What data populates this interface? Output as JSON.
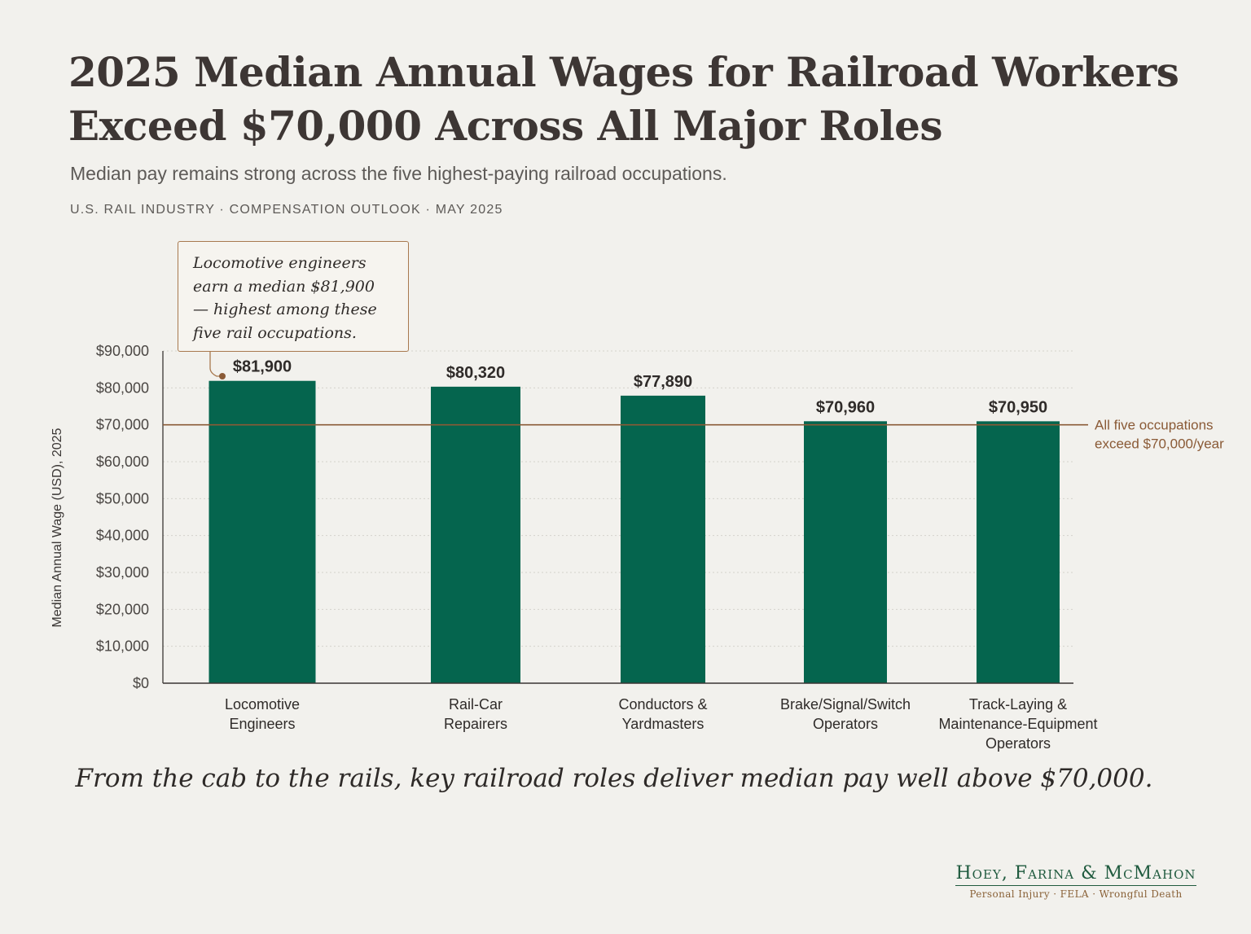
{
  "header": {
    "title": "2025 Median Annual Wages for Railroad Workers Exceed $70,000 Across All Major Roles",
    "subtitle": "Median pay remains strong across the five highest-paying railroad occupations.",
    "kicker": "U.S. RAIL INDUSTRY · COMPENSATION OUTLOOK · MAY 2025"
  },
  "callout": {
    "text": "Locomotive engineers earn a median $81,900 — highest among these five rail occupations."
  },
  "chart_data": {
    "type": "bar",
    "categories": [
      [
        "Locomotive",
        "Engineers"
      ],
      [
        "Rail-Car",
        "Repairers"
      ],
      [
        "Conductors &",
        "Yardmasters"
      ],
      [
        "Brake/Signal/Switch",
        "Operators"
      ],
      [
        "Track-Laying &",
        "Maintenance-Equipment",
        "Operators"
      ]
    ],
    "values": [
      81900,
      80320,
      77890,
      70960,
      70950
    ],
    "value_labels": [
      "$81,900",
      "$80,320",
      "$77,890",
      "$70,960",
      "$70,950"
    ],
    "ylabel": "Median Annual Wage (USD), 2025",
    "ylim": [
      0,
      90000
    ],
    "yticks": [
      0,
      10000,
      20000,
      30000,
      40000,
      50000,
      60000,
      70000,
      80000,
      90000
    ],
    "ytick_labels": [
      "$0",
      "$10,000",
      "$20,000",
      "$30,000",
      "$40,000",
      "$50,000",
      "$60,000",
      "$70,000",
      "$80,000",
      "$90,000"
    ],
    "reference_line": {
      "value": 70000,
      "label": [
        "All five occupations",
        "exceed $70,000/year"
      ]
    },
    "grid": true,
    "colors": {
      "bar": "#05654e",
      "reference": "#8a5a36",
      "axis": "#3a3634",
      "grid": "#d4d2cc"
    }
  },
  "footer": {
    "quote": "From the cab to the rails, key railroad roles deliver median pay well above $70,000.",
    "firm_name": "Hoey, Farina & McMahon",
    "firm_tagline": "Personal Injury · FELA · Wrongful Death"
  }
}
